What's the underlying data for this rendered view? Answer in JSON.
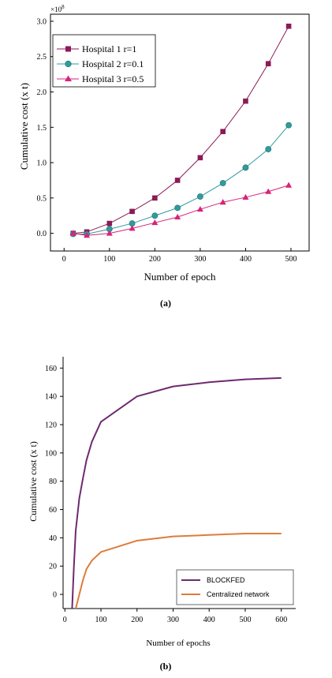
{
  "figure": {
    "panel_a_caption": "(a)",
    "panel_b_caption": "(b)"
  },
  "chart_data": [
    {
      "type": "line",
      "xlabel": "Number of epoch",
      "ylabel": "Cumulative cost (x t)",
      "y_multiplier": "x10^8",
      "y_multiplier_base": "×10",
      "y_multiplier_exp": "8",
      "xlim": [
        -30,
        540
      ],
      "ylim": [
        -0.25,
        3.1
      ],
      "xticks": [
        0,
        100,
        200,
        300,
        400,
        500
      ],
      "yticks": [
        0.0,
        0.5,
        1.0,
        1.5,
        2.0,
        2.5,
        3.0
      ],
      "ytick_labels": [
        "0.0",
        "0.5",
        "1.0",
        "1.5",
        "2.0",
        "2.5",
        "3.0"
      ],
      "legend_position": "top-left",
      "x": [
        20,
        50,
        100,
        150,
        200,
        250,
        300,
        350,
        400,
        450,
        495
      ],
      "series": [
        {
          "name": "Hospital 1 r=1",
          "marker": "square",
          "color": "#8b1a55",
          "values": [
            0.0,
            0.02,
            0.14,
            0.31,
            0.5,
            0.75,
            1.07,
            1.44,
            1.87,
            2.4,
            2.93
          ]
        },
        {
          "name": "Hospital 2 r=0.1",
          "marker": "circle",
          "color": "#2f9c9c",
          "values": [
            -0.01,
            -0.01,
            0.06,
            0.14,
            0.25,
            0.36,
            0.52,
            0.71,
            0.93,
            1.19,
            1.53
          ]
        },
        {
          "name": "Hospital 3 r=0.5",
          "marker": "triangle",
          "color": "#d6247a",
          "values": [
            0.0,
            -0.03,
            0.0,
            0.07,
            0.15,
            0.23,
            0.34,
            0.44,
            0.51,
            0.59,
            0.68
          ]
        }
      ]
    },
    {
      "type": "line",
      "xlabel": "Number of epochs",
      "ylabel": "Cumulative cost (x t)",
      "xlim": [
        -5,
        640
      ],
      "ylim": [
        -10,
        168
      ],
      "xticks": [
        0,
        100,
        200,
        300,
        400,
        500,
        600
      ],
      "yticks": [
        0,
        20,
        40,
        60,
        80,
        100,
        120,
        140,
        160
      ],
      "legend_position": "bottom-right",
      "series": [
        {
          "name": "BLOCKFED",
          "color": "#6d2a6e",
          "x": [
            20,
            25,
            30,
            40,
            50,
            60,
            75,
            100,
            150,
            200,
            300,
            400,
            500,
            600
          ],
          "values": [
            -10,
            20,
            45,
            68,
            82,
            95,
            108,
            122,
            131,
            140,
            147,
            150,
            152,
            153
          ]
        },
        {
          "name": "Centralized network",
          "color": "#e07b3a",
          "x": [
            30,
            40,
            50,
            60,
            75,
            100,
            150,
            200,
            300,
            400,
            500,
            600
          ],
          "values": [
            -10,
            0,
            10,
            18,
            24,
            30,
            34,
            38,
            41,
            42,
            43,
            43
          ]
        }
      ]
    }
  ]
}
